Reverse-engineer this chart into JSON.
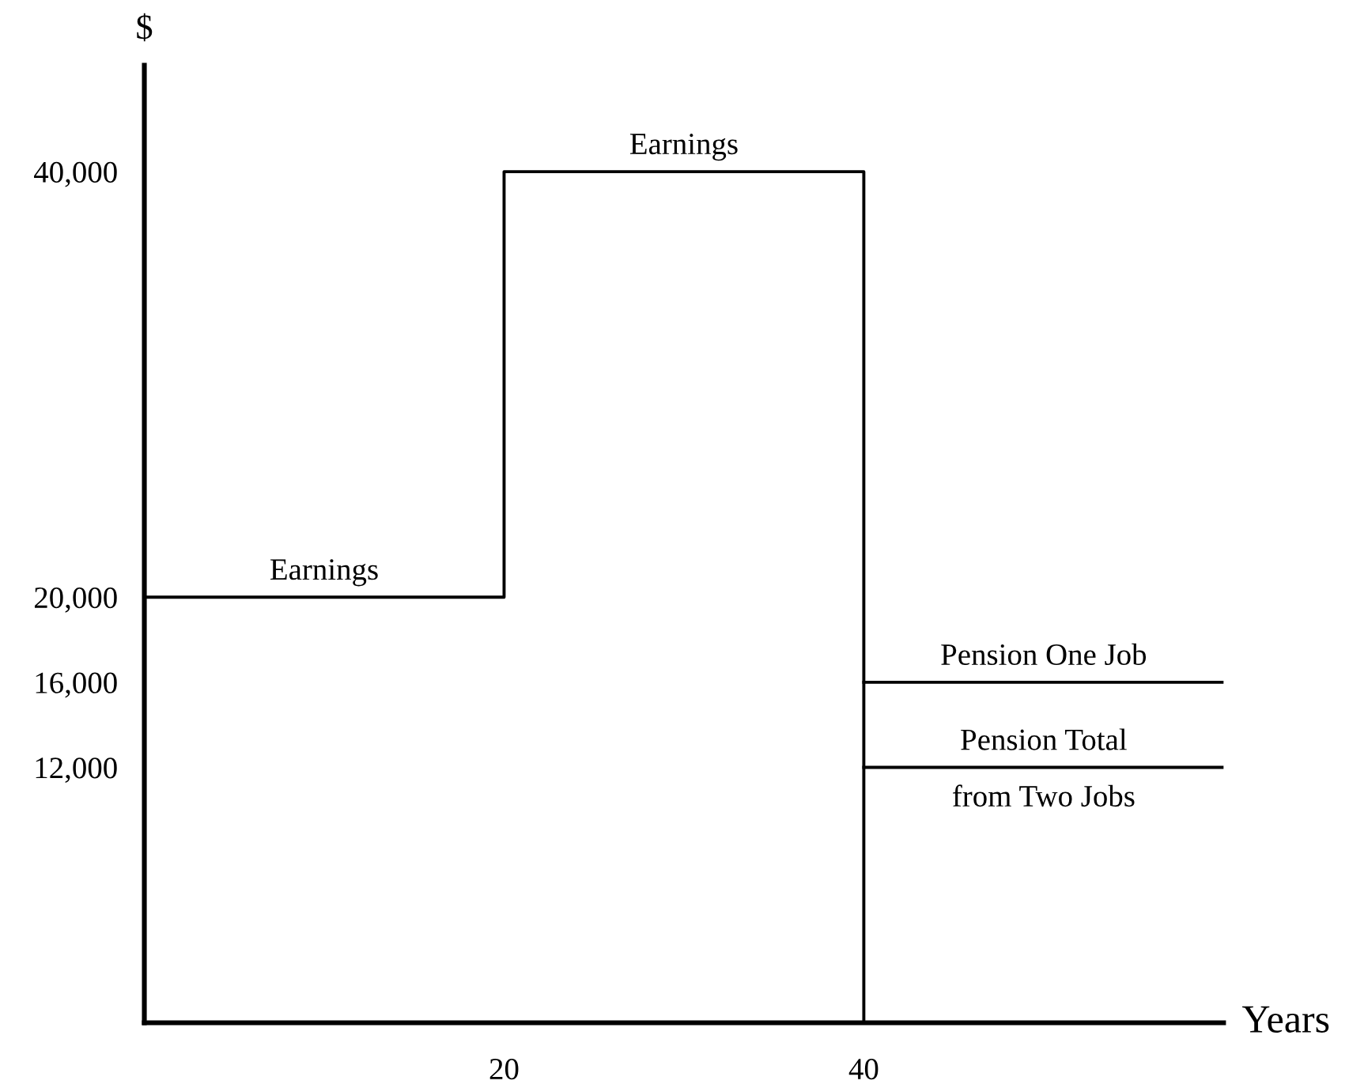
{
  "chart_data": {
    "type": "line",
    "xlabel": "Years",
    "ylabel": "$",
    "series": [
      {
        "color": "#000000",
        "x": [
          0,
          20,
          20,
          40,
          40
        ],
        "values": [
          20000,
          20000,
          40000,
          40000,
          0
        ]
      },
      {
        "color": "#000000",
        "x": [
          40,
          60
        ],
        "values": [
          16000,
          16000
        ]
      },
      {
        "color": "#000000",
        "x": [
          40,
          60
        ],
        "values": [
          12000,
          12000
        ]
      }
    ],
    "annotations": [
      {
        "text": "Earnings",
        "x": 10,
        "y": 20000
      },
      {
        "text": "Earnings",
        "x": 30,
        "y": 40000
      },
      {
        "text": "Pension One Job",
        "x": 50,
        "y": 16000
      },
      {
        "text": "Pension Total",
        "x": 50,
        "y": 12000
      },
      {
        "text": "from Two Jobs",
        "x": 50,
        "y": 12000
      }
    ],
    "xlim": [
      0,
      60
    ],
    "ylim": [
      0,
      45000
    ],
    "xticks": [
      20,
      40
    ],
    "yticks": [
      {
        "value": 12000,
        "label": "12,000"
      },
      {
        "value": 16000,
        "label": "16,000"
      },
      {
        "value": 20000,
        "label": "20,000"
      },
      {
        "value": 40000,
        "label": "40,000"
      }
    ],
    "grid": false,
    "marker": "none",
    "line_style": "solid"
  }
}
